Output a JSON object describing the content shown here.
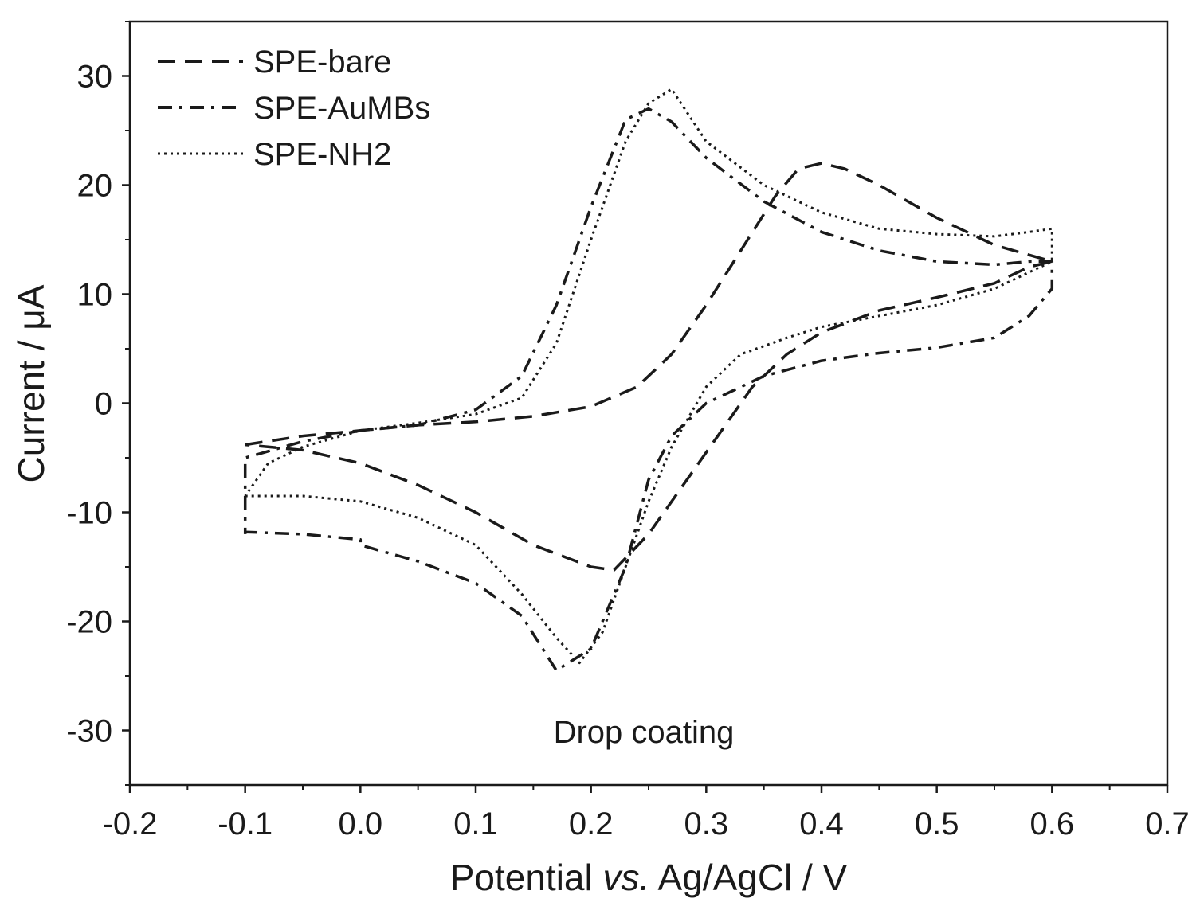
{
  "chart_data": {
    "type": "line",
    "title": "",
    "xlabel_parts": [
      "Potential ",
      "vs.",
      " Ag/AgCl / V"
    ],
    "ylabel": "Current / μA",
    "xlim": [
      -0.2,
      0.7
    ],
    "ylim": [
      -35,
      35
    ],
    "x_ticks": [
      -0.2,
      -0.1,
      0.0,
      0.1,
      0.2,
      0.3,
      0.4,
      0.5,
      0.6,
      0.7
    ],
    "x_tick_labels": [
      "-0.2",
      "-0.1",
      "0.0",
      "0.1",
      "0.2",
      "0.3",
      "0.4",
      "0.5",
      "0.6",
      "0.7"
    ],
    "y_ticks": [
      -30,
      -20,
      -10,
      0,
      10,
      20,
      30
    ],
    "y_tick_labels": [
      "-30",
      "-20",
      "-10",
      "0",
      "10",
      "20",
      "30"
    ],
    "legend_position": "top-left",
    "annotation": "Drop coating",
    "series": [
      {
        "name": "SPE-bare",
        "style": "dashed",
        "points": [
          [
            -0.1,
            -3.8
          ],
          [
            -0.05,
            -3.0
          ],
          [
            0.0,
            -2.5
          ],
          [
            0.05,
            -2.0
          ],
          [
            0.1,
            -1.7
          ],
          [
            0.15,
            -1.2
          ],
          [
            0.2,
            -0.3
          ],
          [
            0.24,
            1.5
          ],
          [
            0.27,
            4.5
          ],
          [
            0.3,
            9.0
          ],
          [
            0.33,
            14.0
          ],
          [
            0.36,
            19.0
          ],
          [
            0.38,
            21.5
          ],
          [
            0.4,
            22.0
          ],
          [
            0.42,
            21.5
          ],
          [
            0.45,
            20.0
          ],
          [
            0.5,
            17.0
          ],
          [
            0.55,
            14.5
          ],
          [
            0.6,
            13.0
          ],
          [
            0.58,
            12.5
          ],
          [
            0.55,
            11.0
          ],
          [
            0.5,
            9.7
          ],
          [
            0.45,
            8.5
          ],
          [
            0.4,
            6.5
          ],
          [
            0.37,
            4.5
          ],
          [
            0.34,
            1.5
          ],
          [
            0.31,
            -3.0
          ],
          [
            0.28,
            -7.5
          ],
          [
            0.25,
            -12.0
          ],
          [
            0.22,
            -15.3
          ],
          [
            0.2,
            -15.0
          ],
          [
            0.15,
            -13.0
          ],
          [
            0.1,
            -10.0
          ],
          [
            0.05,
            -7.5
          ],
          [
            0.0,
            -5.5
          ],
          [
            -0.05,
            -4.3
          ],
          [
            -0.1,
            -3.8
          ]
        ]
      },
      {
        "name": "SPE-AuMBs",
        "style": "dashdot",
        "points": [
          [
            -0.1,
            -12.0
          ],
          [
            -0.1,
            -11.8
          ],
          [
            -0.05,
            -12.0
          ],
          [
            0.0,
            -12.5
          ],
          [
            0.0,
            -13.0
          ],
          [
            0.05,
            -14.5
          ],
          [
            0.1,
            -16.5
          ],
          [
            0.14,
            -19.5
          ],
          [
            0.17,
            -24.5
          ],
          [
            0.2,
            -22.5
          ],
          [
            0.23,
            -15.0
          ],
          [
            0.25,
            -7.0
          ],
          [
            0.27,
            -3.0
          ],
          [
            0.3,
            0.0
          ],
          [
            0.35,
            2.5
          ],
          [
            0.4,
            3.9
          ],
          [
            0.45,
            4.6
          ],
          [
            0.5,
            5.1
          ],
          [
            0.55,
            6.0
          ],
          [
            0.58,
            8.0
          ],
          [
            0.6,
            10.5
          ],
          [
            0.6,
            13.0
          ],
          [
            0.58,
            13.0
          ],
          [
            0.55,
            12.7
          ],
          [
            0.5,
            13.0
          ],
          [
            0.45,
            14.0
          ],
          [
            0.4,
            15.7
          ],
          [
            0.35,
            18.5
          ],
          [
            0.3,
            22.5
          ],
          [
            0.27,
            25.8
          ],
          [
            0.25,
            27.0
          ],
          [
            0.23,
            26.0
          ],
          [
            0.2,
            18.0
          ],
          [
            0.17,
            9.0
          ],
          [
            0.14,
            2.5
          ],
          [
            0.1,
            -0.6
          ],
          [
            0.05,
            -2.0
          ],
          [
            0.0,
            -2.5
          ],
          [
            -0.05,
            -3.5
          ],
          [
            -0.1,
            -5.0
          ],
          [
            -0.1,
            -12.0
          ]
        ]
      },
      {
        "name": "SPE-NH2",
        "style": "dotted",
        "points": [
          [
            -0.1,
            -8.5
          ],
          [
            -0.05,
            -8.5
          ],
          [
            0.0,
            -9.0
          ],
          [
            0.05,
            -10.5
          ],
          [
            0.1,
            -13.0
          ],
          [
            0.14,
            -17.5
          ],
          [
            0.17,
            -21.5
          ],
          [
            0.19,
            -23.8
          ],
          [
            0.21,
            -21.0
          ],
          [
            0.23,
            -15.0
          ],
          [
            0.25,
            -9.0
          ],
          [
            0.27,
            -4.0
          ],
          [
            0.3,
            1.5
          ],
          [
            0.33,
            4.5
          ],
          [
            0.37,
            6.0
          ],
          [
            0.4,
            7.0
          ],
          [
            0.45,
            8.0
          ],
          [
            0.5,
            9.0
          ],
          [
            0.55,
            10.5
          ],
          [
            0.6,
            13.0
          ],
          [
            0.6,
            16.0
          ],
          [
            0.58,
            15.7
          ],
          [
            0.55,
            15.3
          ],
          [
            0.5,
            15.5
          ],
          [
            0.45,
            16.0
          ],
          [
            0.4,
            17.5
          ],
          [
            0.35,
            20.0
          ],
          [
            0.3,
            24.0
          ],
          [
            0.27,
            28.8
          ],
          [
            0.25,
            27.5
          ],
          [
            0.23,
            24.0
          ],
          [
            0.2,
            15.0
          ],
          [
            0.17,
            5.5
          ],
          [
            0.14,
            0.5
          ],
          [
            0.1,
            -1.0
          ],
          [
            0.05,
            -1.8
          ],
          [
            0.0,
            -2.5
          ],
          [
            -0.05,
            -4.0
          ],
          [
            -0.08,
            -5.5
          ],
          [
            -0.1,
            -8.5
          ]
        ]
      }
    ]
  }
}
